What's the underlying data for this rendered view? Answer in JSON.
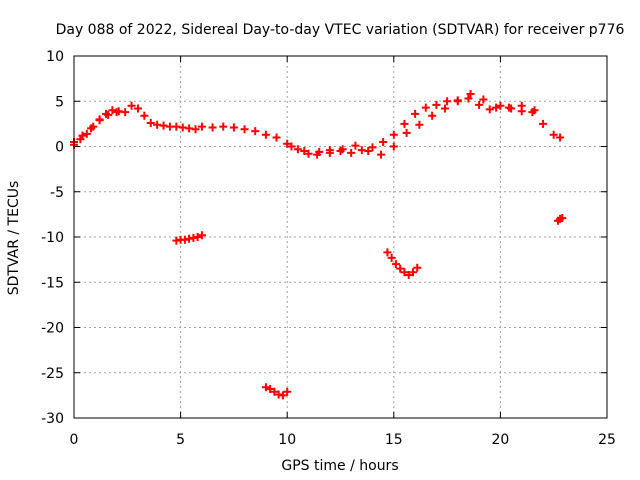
{
  "chart_data": {
    "type": "scatter",
    "title": "Day 088 of 2022, Sidereal Day-to-day VTEC variation (SDTVAR) for receiver p776",
    "xlabel": "GPS time / hours",
    "ylabel": "SDTVAR / TECUs",
    "xlim": [
      0,
      25
    ],
    "ylim": [
      -30,
      10
    ],
    "xticks": [
      0,
      5,
      10,
      15,
      20,
      25
    ],
    "yticks": [
      10,
      5,
      0,
      -5,
      -10,
      -15,
      -20,
      -25,
      -30
    ],
    "xtick_labels": [
      "0",
      "5",
      "10",
      "15",
      "20",
      "25"
    ],
    "ytick_labels": [
      "10",
      "5",
      "0",
      "-5",
      "-10",
      "-15",
      "-20",
      "-25",
      "-30"
    ],
    "grid": true,
    "legend": "none",
    "marker": "plus",
    "color": "#ff0000",
    "series": [
      {
        "name": "main-trace-a",
        "x": [
          0.0,
          0.3,
          0.6,
          0.9,
          1.2,
          1.5,
          1.8,
          2.1,
          2.4,
          2.7,
          3.0,
          3.3,
          3.6,
          3.9,
          4.2,
          4.5,
          4.8,
          5.1,
          5.4,
          5.7,
          6.0,
          6.5,
          7.0,
          7.5,
          8.0,
          8.5,
          9.0,
          9.5,
          10.0,
          10.5,
          11.0,
          11.5,
          12.0,
          12.5,
          13.0,
          13.5,
          14.0,
          14.5,
          15.0,
          15.5,
          16.0,
          16.5,
          17.0,
          17.5,
          18.0,
          18.5,
          19.0,
          19.5,
          20.0,
          20.5,
          21.0,
          21.5,
          22.0,
          22.5,
          22.8
        ],
        "y": [
          0.2,
          0.8,
          1.4,
          2.2,
          3.0,
          3.6,
          4.0,
          3.9,
          3.8,
          4.5,
          4.2,
          3.4,
          2.6,
          2.4,
          2.3,
          2.2,
          2.2,
          2.1,
          2.0,
          1.9,
          2.2,
          2.1,
          2.2,
          2.1,
          1.9,
          1.7,
          1.3,
          1.0,
          0.3,
          -0.3,
          -0.8,
          -0.6,
          -0.4,
          -0.5,
          -0.7,
          -0.4,
          -0.1,
          0.5,
          1.3,
          2.5,
          3.6,
          4.3,
          4.6,
          5.0,
          5.1,
          5.3,
          4.6,
          4.1,
          4.5,
          4.2,
          3.9,
          3.8,
          2.5,
          1.3,
          1.0
        ]
      },
      {
        "name": "main-trace-b",
        "x": [
          0.0,
          0.4,
          0.8,
          1.2,
          1.6,
          2.0,
          10.2,
          10.8,
          11.4,
          12.0,
          12.6,
          13.2,
          13.8,
          14.4,
          15.0,
          15.6,
          16.2,
          16.8,
          17.4,
          18.0,
          18.6,
          19.2,
          19.8,
          20.4,
          21.0,
          21.6
        ],
        "y": [
          0.5,
          1.2,
          2.0,
          2.9,
          3.5,
          3.8,
          0.0,
          -0.5,
          -0.9,
          -0.7,
          -0.3,
          0.1,
          -0.5,
          -0.9,
          0.0,
          1.5,
          2.4,
          3.4,
          4.2,
          5.0,
          5.8,
          5.2,
          4.3,
          4.3,
          4.5,
          4.0
        ]
      },
      {
        "name": "cluster-near-5h",
        "x": [
          4.8,
          5.0,
          5.2,
          5.4,
          5.6,
          5.8,
          6.0
        ],
        "y": [
          -10.4,
          -10.3,
          -10.3,
          -10.2,
          -10.1,
          -10.0,
          -9.8
        ]
      },
      {
        "name": "cluster-near-9-5h",
        "x": [
          9.0,
          9.2,
          9.4,
          9.6,
          9.8,
          10.0
        ],
        "y": [
          -26.6,
          -26.8,
          -27.1,
          -27.4,
          -27.5,
          -27.1
        ]
      },
      {
        "name": "cluster-near-15-5h",
        "x": [
          14.7,
          14.9,
          15.1,
          15.3,
          15.5,
          15.7,
          15.9,
          16.1
        ],
        "y": [
          -11.7,
          -12.3,
          -13.0,
          -13.5,
          -13.9,
          -14.2,
          -13.9,
          -13.4
        ]
      },
      {
        "name": "point-near-22-8h",
        "x": [
          22.7,
          22.8,
          22.9
        ],
        "y": [
          -8.2,
          -8.0,
          -7.9
        ]
      }
    ]
  }
}
